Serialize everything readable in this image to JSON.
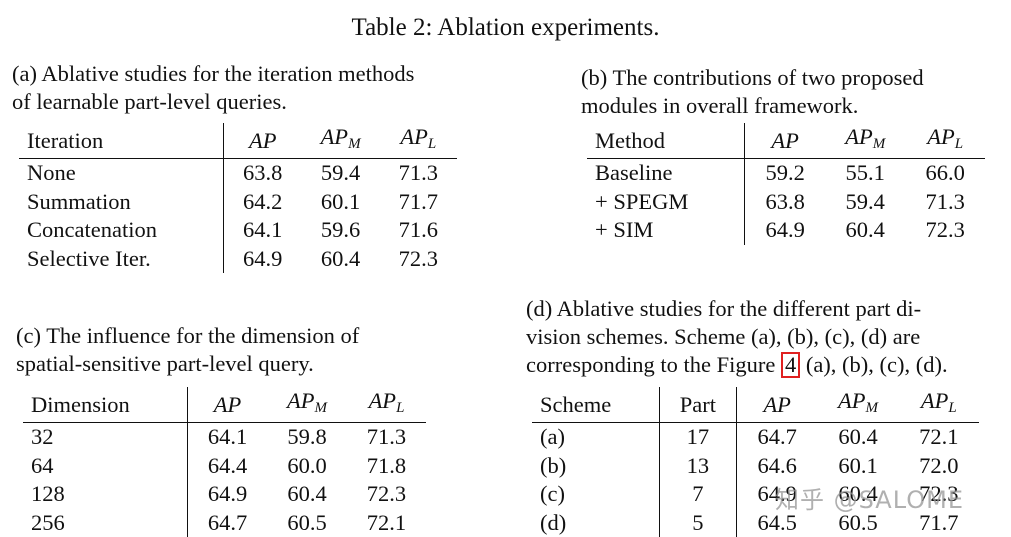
{
  "title": "Table 2: Ablation experiments.",
  "tables": {
    "a": {
      "caption_lines": [
        "(a) Ablative studies for the iteration methods",
        "of learnable part-level queries."
      ],
      "headers": [
        "Iteration",
        "AP",
        "AP",
        "AP"
      ],
      "subscripts": [
        "M",
        "L"
      ],
      "rows": [
        [
          "None",
          "63.8",
          "59.4",
          "71.3"
        ],
        [
          "Summation",
          "64.2",
          "60.1",
          "71.7"
        ],
        [
          "Concatenation",
          "64.1",
          "59.6",
          "71.6"
        ],
        [
          "Selective Iter.",
          "64.9",
          "60.4",
          "72.3"
        ]
      ]
    },
    "b": {
      "caption_lines": [
        "(b) The contributions of two proposed",
        "modules in overall framework."
      ],
      "headers": [
        "Method",
        "AP",
        "AP",
        "AP"
      ],
      "subscripts": [
        "M",
        "L"
      ],
      "rows": [
        [
          "Baseline",
          "59.2",
          "55.1",
          "66.0"
        ],
        [
          "+ SPEGM",
          "63.8",
          "59.4",
          "71.3"
        ],
        [
          "+ SIM",
          "64.9",
          "60.4",
          "72.3"
        ]
      ]
    },
    "c": {
      "caption_lines": [
        "(c) The influence for the dimension of",
        "spatial-sensitive part-level query."
      ],
      "headers": [
        "Dimension",
        "AP",
        "AP",
        "AP"
      ],
      "subscripts": [
        "M",
        "L"
      ],
      "rows": [
        [
          "32",
          "64.1",
          "59.8",
          "71.3"
        ],
        [
          "64",
          "64.4",
          "60.0",
          "71.8"
        ],
        [
          "128",
          "64.9",
          "60.4",
          "72.3"
        ],
        [
          "256",
          "64.7",
          "60.5",
          "72.1"
        ]
      ]
    },
    "d": {
      "caption_lines": [
        "(d) Ablative studies for the different part di-",
        "vision schemes. Scheme (a), (b), (c), (d) are"
      ],
      "caption_line3_pre": "corresponding to the Figure ",
      "caption_line3_ref": "4",
      "caption_line3_post": " (a), (b), (c), (d).",
      "headers": [
        "Scheme",
        "Part",
        "AP",
        "AP",
        "AP"
      ],
      "subscripts": [
        "M",
        "L"
      ],
      "rows": [
        [
          "(a)",
          "17",
          "64.7",
          "60.4",
          "72.1"
        ],
        [
          "(b)",
          "13",
          "64.6",
          "60.1",
          "72.0"
        ],
        [
          "(c)",
          "7",
          "64.9",
          "60.4",
          "72.3"
        ],
        [
          "(d)",
          "5",
          "64.5",
          "60.5",
          "71.7"
        ]
      ]
    }
  },
  "watermark": "知乎 @SALOME"
}
